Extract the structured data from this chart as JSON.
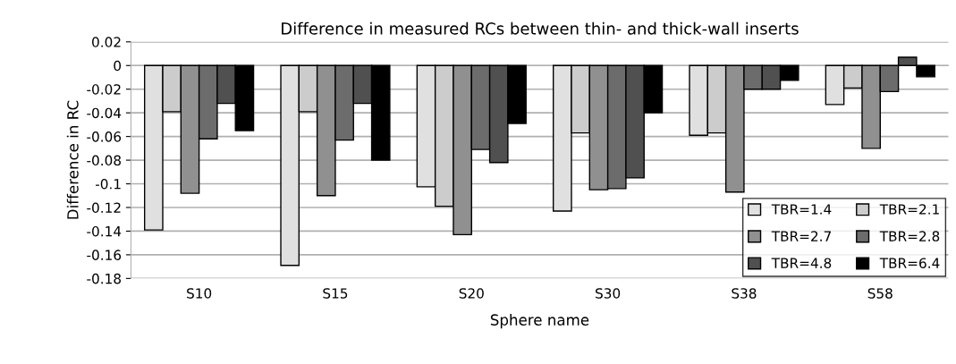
{
  "chart_data": {
    "type": "bar",
    "title": "Difference in measured RCs between thin- and thick-wall inserts",
    "xlabel": "Sphere name",
    "ylabel": "Difference in RC",
    "categories": [
      "S10",
      "S15",
      "S20",
      "S30",
      "S38",
      "S58"
    ],
    "series": [
      {
        "name": "TBR=1.4",
        "color": "#e0e0e0",
        "values": [
          -0.139,
          -0.169,
          -0.1025,
          -0.123,
          -0.059,
          -0.033
        ]
      },
      {
        "name": "TBR=2.1",
        "color": "#cccccc",
        "values": [
          -0.039,
          -0.039,
          -0.119,
          -0.057,
          -0.057,
          -0.019
        ]
      },
      {
        "name": "TBR=2.7",
        "color": "#909090",
        "values": [
          -0.108,
          -0.11,
          -0.143,
          -0.105,
          -0.107,
          -0.07
        ]
      },
      {
        "name": "TBR=2.8",
        "color": "#6c6c6c",
        "values": [
          -0.062,
          -0.063,
          -0.071,
          -0.104,
          -0.02,
          -0.022
        ]
      },
      {
        "name": "TBR=4.8",
        "color": "#505050",
        "values": [
          -0.032,
          -0.032,
          -0.082,
          -0.095,
          -0.02,
          0.007
        ]
      },
      {
        "name": "TBR=6.4",
        "color": "#000000",
        "values": [
          -0.055,
          -0.08,
          -0.049,
          -0.04,
          -0.0125,
          -0.0095
        ]
      }
    ],
    "ylim": [
      -0.18,
      0.02
    ],
    "yticks": [
      {
        "value": 0.02,
        "label": "0.02"
      },
      0,
      {
        "value": -0.02,
        "label": "-0.02"
      },
      {
        "value": -0.04,
        "label": "-0.04"
      },
      {
        "value": -0.06,
        "label": "-0.06"
      },
      {
        "value": -0.08,
        "label": "-0.08"
      },
      {
        "value": -0.1,
        "label": "-0.1"
      },
      {
        "value": -0.12,
        "label": "-0.12"
      },
      {
        "value": -0.14,
        "label": "-0.14"
      },
      {
        "value": -0.16,
        "label": "-0.16"
      },
      {
        "value": -0.18,
        "label": "-0.18"
      }
    ],
    "grid": "y",
    "legend": "bottom right"
  }
}
